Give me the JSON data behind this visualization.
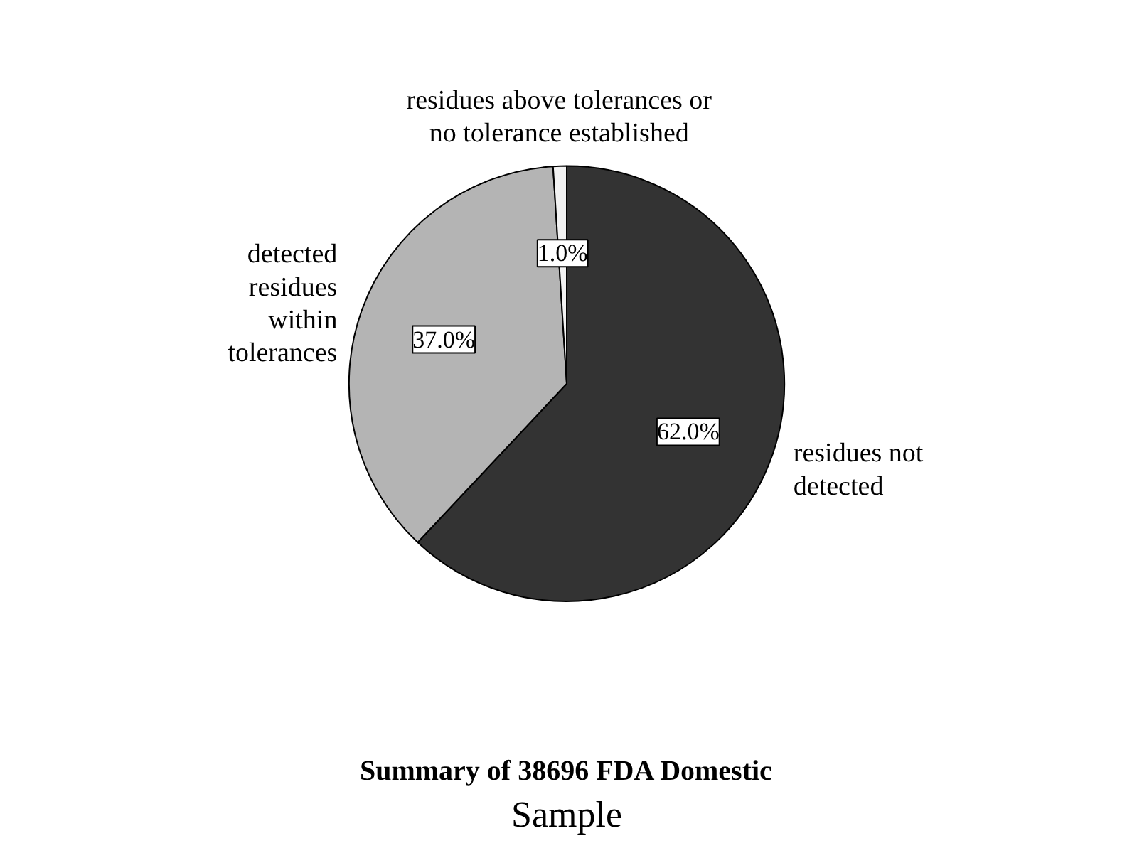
{
  "chart_data": {
    "type": "pie",
    "title": "Summary of 38696 FDA Domestic",
    "subtitle": "Sample",
    "categories": [
      "residues not detected",
      "detected residues within tolerances",
      "residues above tolerances or no tolerance established"
    ],
    "values": [
      62.0,
      37.0,
      1.0
    ],
    "value_labels": [
      "62.0%",
      "37.0%",
      "1.0%"
    ],
    "colors": [
      "#333333",
      "#b4b4b4",
      "#f2f2f2"
    ]
  }
}
